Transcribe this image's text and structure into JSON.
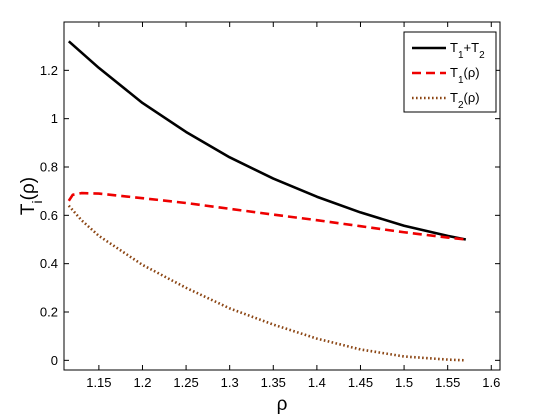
{
  "chart_data": {
    "type": "line",
    "xlabel": "ρ",
    "ylabel": {
      "main": "T",
      "sub": "i",
      "tail": "(ρ)"
    },
    "xlim": [
      1.11,
      1.61
    ],
    "ylim": [
      -0.04,
      1.4
    ],
    "x_ticks": [
      "1.15",
      "1.2",
      "1.25",
      "1.3",
      "1.35",
      "1.4",
      "1.45",
      "1.5",
      "1.55",
      "1.6"
    ],
    "x_tick_values": [
      1.15,
      1.2,
      1.25,
      1.3,
      1.35,
      1.4,
      1.45,
      1.5,
      1.55,
      1.6
    ],
    "y_ticks": [
      "0",
      "0.2",
      "0.4",
      "0.6",
      "0.8",
      "1",
      "1.2"
    ],
    "y_tick_values": [
      0,
      0.2,
      0.4,
      0.6,
      0.8,
      1,
      1.2
    ],
    "grid": false,
    "legend_position": "top-right",
    "series": [
      {
        "name": {
          "parts": [
            [
              "T",
              ""
            ],
            [
              "1",
              "sub"
            ],
            [
              "+T",
              ""
            ],
            [
              "2",
              "sub"
            ]
          ]
        },
        "color": "#000000",
        "style": "solid",
        "points": [
          [
            1.1155,
            1.32
          ],
          [
            1.15,
            1.21
          ],
          [
            1.2,
            1.065
          ],
          [
            1.25,
            0.945
          ],
          [
            1.3,
            0.84
          ],
          [
            1.35,
            0.752
          ],
          [
            1.4,
            0.677
          ],
          [
            1.45,
            0.612
          ],
          [
            1.5,
            0.557
          ],
          [
            1.55,
            0.515
          ],
          [
            1.5708,
            0.5
          ]
        ]
      },
      {
        "name": {
          "parts": [
            [
              "T",
              ""
            ],
            [
              "1",
              "sub"
            ],
            [
              "(ρ)",
              ""
            ]
          ]
        },
        "color": "#ee0000",
        "style": "dashed",
        "points": [
          [
            1.1155,
            0.66
          ],
          [
            1.12,
            0.685
          ],
          [
            1.13,
            0.692
          ],
          [
            1.15,
            0.69
          ],
          [
            1.2,
            0.671
          ],
          [
            1.25,
            0.651
          ],
          [
            1.3,
            0.627
          ],
          [
            1.35,
            0.603
          ],
          [
            1.4,
            0.58
          ],
          [
            1.45,
            0.555
          ],
          [
            1.5,
            0.53
          ],
          [
            1.55,
            0.508
          ],
          [
            1.5708,
            0.5
          ]
        ]
      },
      {
        "name": {
          "parts": [
            [
              "T",
              ""
            ],
            [
              "2",
              "sub"
            ],
            [
              "(ρ)",
              ""
            ]
          ]
        },
        "color": "#8b4513",
        "style": "dotted",
        "points": [
          [
            1.1155,
            0.64
          ],
          [
            1.13,
            0.58
          ],
          [
            1.15,
            0.515
          ],
          [
            1.2,
            0.395
          ],
          [
            1.25,
            0.3
          ],
          [
            1.3,
            0.215
          ],
          [
            1.35,
            0.148
          ],
          [
            1.4,
            0.09
          ],
          [
            1.45,
            0.045
          ],
          [
            1.5,
            0.016
          ],
          [
            1.55,
            0.003
          ],
          [
            1.5708,
            0.0
          ]
        ]
      }
    ]
  }
}
